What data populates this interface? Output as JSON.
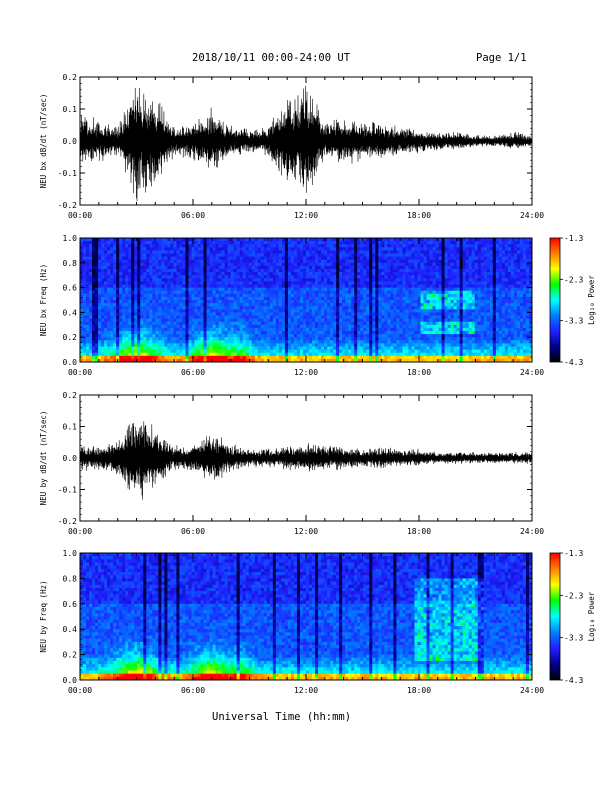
{
  "header": {
    "title": "2018/10/11  00:00-24:00 UT",
    "page": "Page 1/1"
  },
  "xlabel": "Universal Time (hh:mm)",
  "colorbar": {
    "label": "Log₁₀ Power",
    "ticks": [
      "-1.3",
      "-2.3",
      "-3.3",
      "-4.3"
    ],
    "stops": [
      "#ff0000",
      "#ff7f00",
      "#ffff00",
      "#00ff00",
      "#00ffff",
      "#0080ff",
      "#2020ff",
      "#000090",
      "#000000"
    ]
  },
  "icons": [
    "line-series",
    "spectrogram-heatmap",
    "colorbar-gradient"
  ],
  "chart_data": [
    {
      "type": "line",
      "ylabel": "NEU bx dB/dt (nT/sec)",
      "xticks": [
        "00:00",
        "06:00",
        "12:00",
        "18:00",
        "24:00"
      ],
      "yticks": [
        "0.2",
        "0.1",
        "0.0",
        "-0.1",
        "-0.2"
      ],
      "xlim": [
        0,
        24
      ],
      "ylim": [
        -0.2,
        0.2
      ],
      "series_envelope": {
        "hours": [
          0,
          1,
          2,
          3,
          4,
          5,
          6,
          7,
          8,
          9,
          10,
          11,
          12,
          13,
          14,
          15,
          16,
          17,
          18,
          19,
          20,
          21,
          22,
          23,
          24
        ],
        "amplitude": [
          0.09,
          0.07,
          0.05,
          0.2,
          0.15,
          0.05,
          0.06,
          0.11,
          0.05,
          0.04,
          0.05,
          0.16,
          0.2,
          0.06,
          0.08,
          0.07,
          0.06,
          0.05,
          0.04,
          0.03,
          0.03,
          0.02,
          0.02,
          0.03,
          0.02
        ]
      }
    },
    {
      "type": "heatmap",
      "ylabel": "NEU bx Freq (Hz)",
      "xticks": [
        "00:00",
        "06:00",
        "12:00",
        "18:00",
        "24:00"
      ],
      "yticks": [
        "1.0",
        "0.8",
        "0.6",
        "0.4",
        "0.2",
        "0.0"
      ],
      "xlim": [
        0,
        24
      ],
      "ylim": [
        0.0,
        1.0
      ],
      "color_range": [
        -4.3,
        -1.3
      ]
    },
    {
      "type": "line",
      "ylabel": "NEU by dB/dt (nT/sec)",
      "xticks": [
        "00:00",
        "06:00",
        "12:00",
        "18:00",
        "24:00"
      ],
      "yticks": [
        "0.2",
        "0.1",
        "0.0",
        "-0.1",
        "-0.2"
      ],
      "xlim": [
        0,
        24
      ],
      "ylim": [
        -0.2,
        0.2
      ],
      "series_envelope": {
        "hours": [
          0,
          1,
          2,
          3,
          4,
          5,
          6,
          7,
          8,
          9,
          10,
          11,
          12,
          13,
          14,
          15,
          16,
          17,
          18,
          19,
          20,
          21,
          22,
          23,
          24
        ],
        "amplitude": [
          0.05,
          0.04,
          0.06,
          0.17,
          0.1,
          0.04,
          0.05,
          0.09,
          0.05,
          0.03,
          0.03,
          0.04,
          0.05,
          0.04,
          0.04,
          0.03,
          0.04,
          0.03,
          0.03,
          0.02,
          0.02,
          0.02,
          0.02,
          0.02,
          0.02
        ]
      }
    },
    {
      "type": "heatmap",
      "ylabel": "NEU by Freq (Hz)",
      "xticks": [
        "00:00",
        "06:00",
        "12:00",
        "18:00",
        "24:00"
      ],
      "yticks": [
        "1.0",
        "0.8",
        "0.6",
        "0.4",
        "0.2",
        "0.0"
      ],
      "xlim": [
        0,
        24
      ],
      "ylim": [
        0.0,
        1.0
      ],
      "color_range": [
        -4.3,
        -1.3
      ]
    }
  ]
}
